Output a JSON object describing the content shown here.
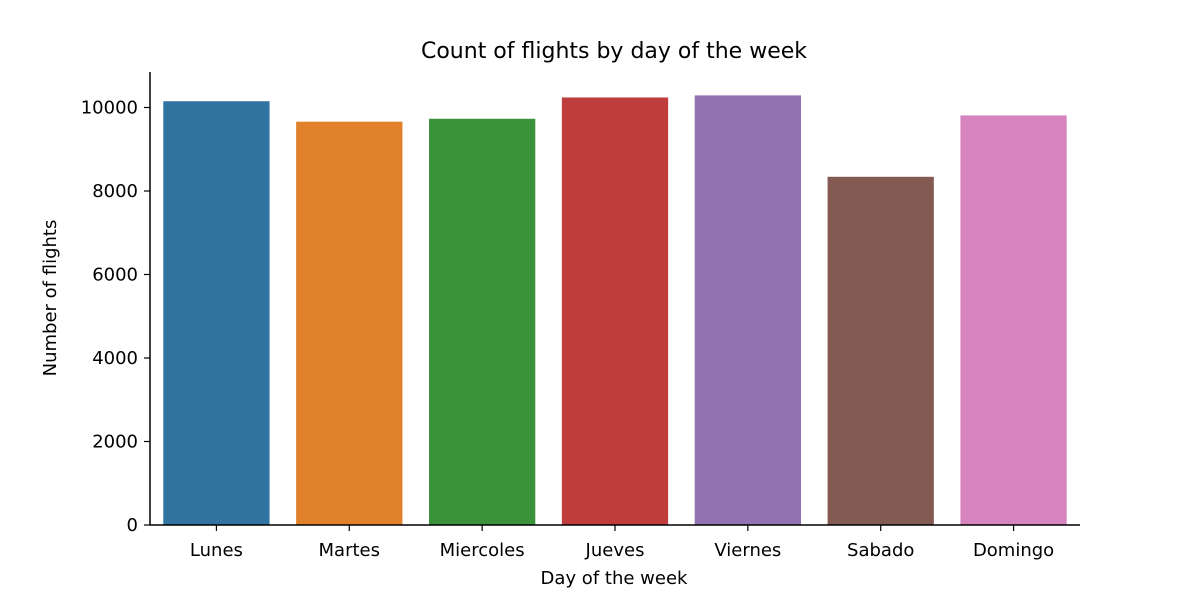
{
  "chart_data": {
    "type": "bar",
    "title": "Count of flights by day of the week",
    "xlabel": "Day of the week",
    "ylabel": "Number of flights",
    "categories": [
      "Lunes",
      "Martes",
      "Miercoles",
      "Jueves",
      "Viernes",
      "Sabado",
      "Domingo"
    ],
    "values": [
      10150,
      9660,
      9730,
      10240,
      10290,
      8340,
      9810
    ],
    "colors": [
      "#3274a1",
      "#e1812c",
      "#3a923a",
      "#c03d3e",
      "#9372b2",
      "#845b53",
      "#d684bd"
    ],
    "ylim": [
      0,
      10850
    ],
    "yticks": [
      0,
      2000,
      4000,
      6000,
      8000,
      10000
    ],
    "ytick_labels": [
      "0",
      "2000",
      "4000",
      "6000",
      "8000",
      "10000"
    ],
    "grid": false,
    "legend": "none"
  }
}
